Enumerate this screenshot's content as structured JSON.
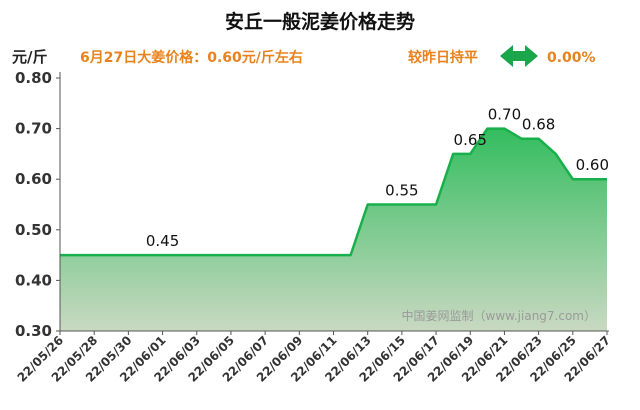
{
  "header": {
    "title": "安丘一般泥姜价格走势",
    "unit": "元/斤",
    "price_text": "6月27日大姜价格：0.60元/斤左右",
    "change_label": "较昨日持平",
    "change_value": "0.00%",
    "change_icon": "double-arrow-icon"
  },
  "watermark": "中国姜网监制（www.jiang7.com）",
  "colors": {
    "accent_orange": "#e8821e",
    "arrow_green": "#1aa64a",
    "line_green": "#18b04a",
    "fill_top": "#33bd5e",
    "fill_bottom": "#c9d9c2"
  },
  "chart_data": {
    "type": "area",
    "title": "安丘一般泥姜价格走势",
    "ylabel": "元/斤",
    "ylim": [
      0.3,
      0.8
    ],
    "yticks": [
      "0.80",
      "0.70",
      "0.60",
      "0.50",
      "0.40",
      "0.30"
    ],
    "x_tick_labels": [
      "22/05/26",
      "22/05/28",
      "22/05/30",
      "22/06/01",
      "22/06/03",
      "22/06/05",
      "22/06/07",
      "22/06/09",
      "22/06/11",
      "22/06/13",
      "22/06/15",
      "22/06/17",
      "22/06/19",
      "22/06/21",
      "22/06/23",
      "22/06/25",
      "22/06/27"
    ],
    "x": [
      "2022-05-26",
      "2022-05-27",
      "2022-05-28",
      "2022-05-29",
      "2022-05-30",
      "2022-05-31",
      "2022-06-01",
      "2022-06-02",
      "2022-06-03",
      "2022-06-04",
      "2022-06-05",
      "2022-06-06",
      "2022-06-07",
      "2022-06-08",
      "2022-06-09",
      "2022-06-10",
      "2022-06-11",
      "2022-06-12",
      "2022-06-13",
      "2022-06-14",
      "2022-06-15",
      "2022-06-16",
      "2022-06-17",
      "2022-06-18",
      "2022-06-19",
      "2022-06-20",
      "2022-06-21",
      "2022-06-22",
      "2022-06-23",
      "2022-06-24",
      "2022-06-25",
      "2022-06-26",
      "2022-06-27"
    ],
    "values": [
      0.45,
      0.45,
      0.45,
      0.45,
      0.45,
      0.45,
      0.45,
      0.45,
      0.45,
      0.45,
      0.45,
      0.45,
      0.45,
      0.45,
      0.45,
      0.45,
      0.45,
      0.45,
      0.55,
      0.55,
      0.55,
      0.55,
      0.55,
      0.65,
      0.65,
      0.7,
      0.7,
      0.68,
      0.68,
      0.65,
      0.6,
      0.6,
      0.6
    ],
    "data_labels": [
      {
        "index": 6,
        "text": "0.45"
      },
      {
        "index": 20,
        "text": "0.55"
      },
      {
        "index": 24,
        "text": "0.65"
      },
      {
        "index": 26,
        "text": "0.70"
      },
      {
        "index": 28,
        "text": "0.68"
      },
      {
        "index": 32,
        "text": "0.60"
      }
    ],
    "grid": false,
    "legend": "none"
  }
}
